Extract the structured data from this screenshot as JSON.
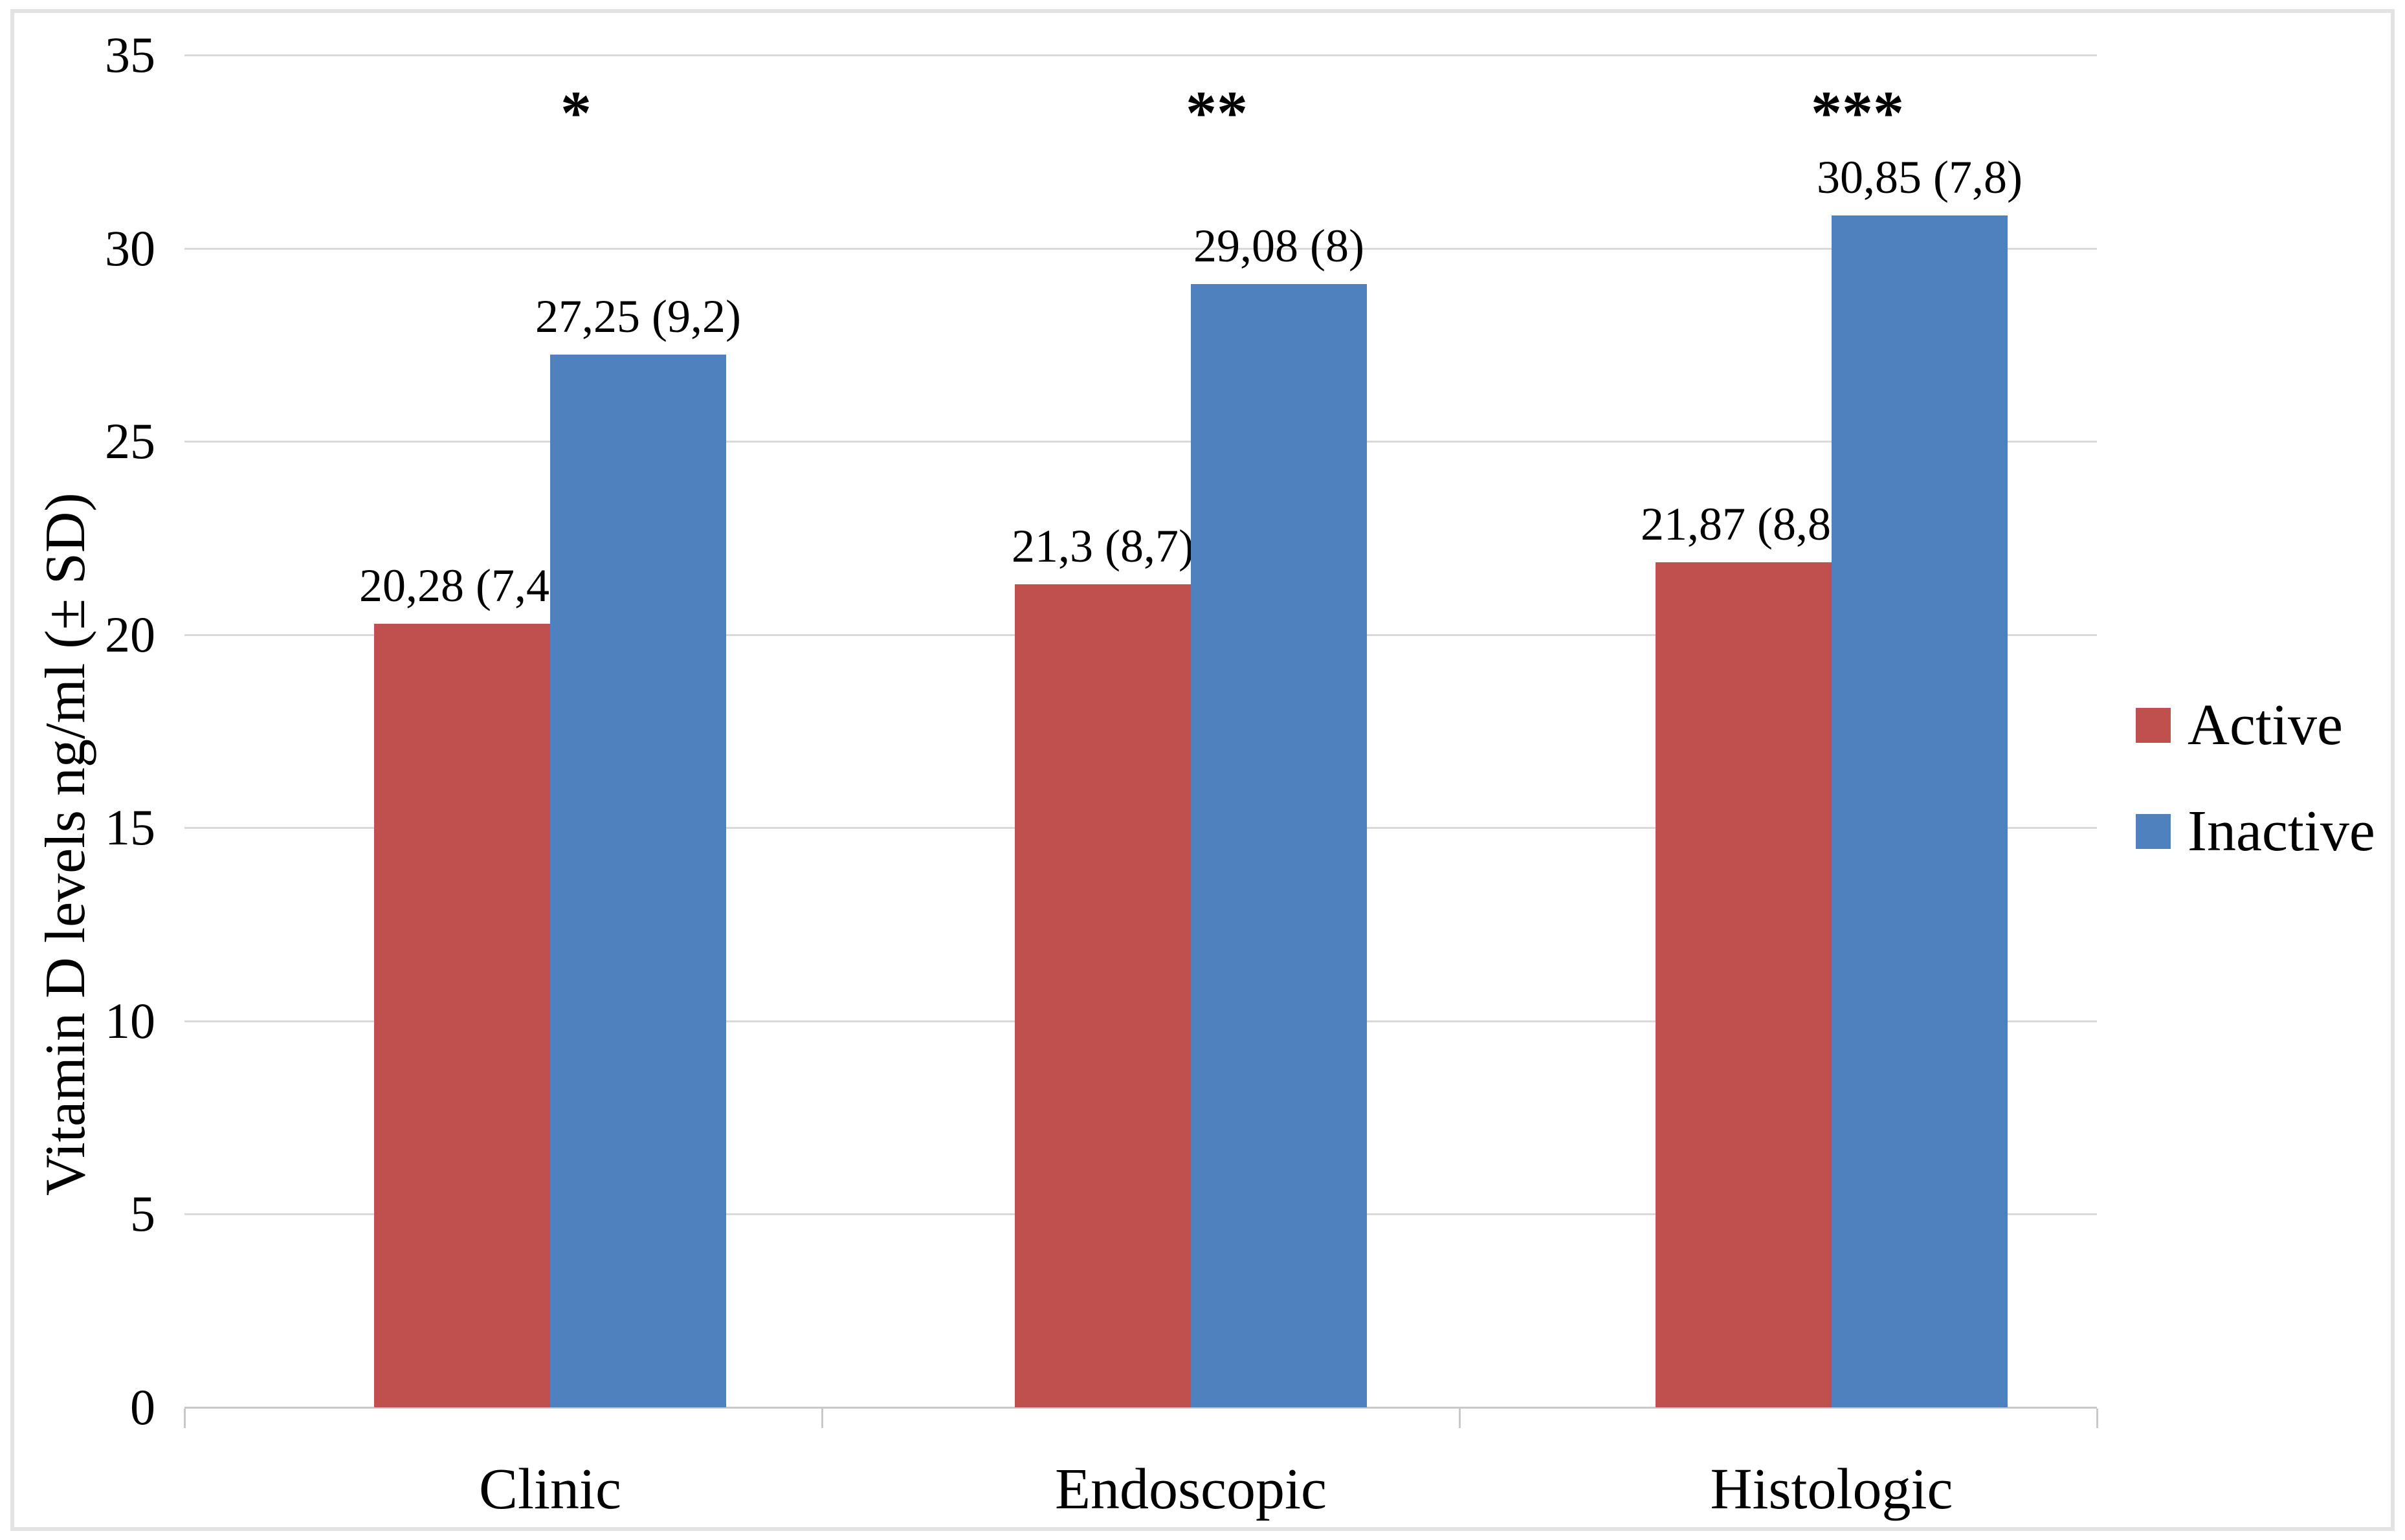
{
  "figure": {
    "background": "#ffffff",
    "border_color": "#e3e3e3",
    "gridline_color": "#dadada",
    "axis_line_color": "#c9c9c9"
  },
  "chart_data": {
    "type": "bar",
    "title": "",
    "xlabel": "",
    "ylabel": "Vitamin D levels ng/ml (± SD)",
    "categories": [
      "Clinic",
      "Endoscopic",
      "Histologic"
    ],
    "series": [
      {
        "name": "Active",
        "color": "#C0504D",
        "values": [
          20.28,
          21.3,
          21.87
        ],
        "sd": [
          7.4,
          8.7,
          8.8
        ],
        "labels": [
          "20,28 (7,4)",
          "21,3 (8,7)",
          "21,87 (8,8)"
        ]
      },
      {
        "name": "Inactive",
        "color": "#4E81BD",
        "values": [
          27.25,
          29.08,
          30.85
        ],
        "sd": [
          9.2,
          8,
          7.8
        ],
        "labels": [
          "27,25 (9,2)",
          "29,08 (8)",
          "30,85 (7,8)"
        ]
      }
    ],
    "significance": [
      "*",
      "**",
      "***"
    ],
    "yticks": [
      0,
      5,
      10,
      15,
      20,
      25,
      30,
      35
    ],
    "ylim": [
      0,
      35
    ],
    "grid": "horizontal",
    "legend_position": "right"
  }
}
